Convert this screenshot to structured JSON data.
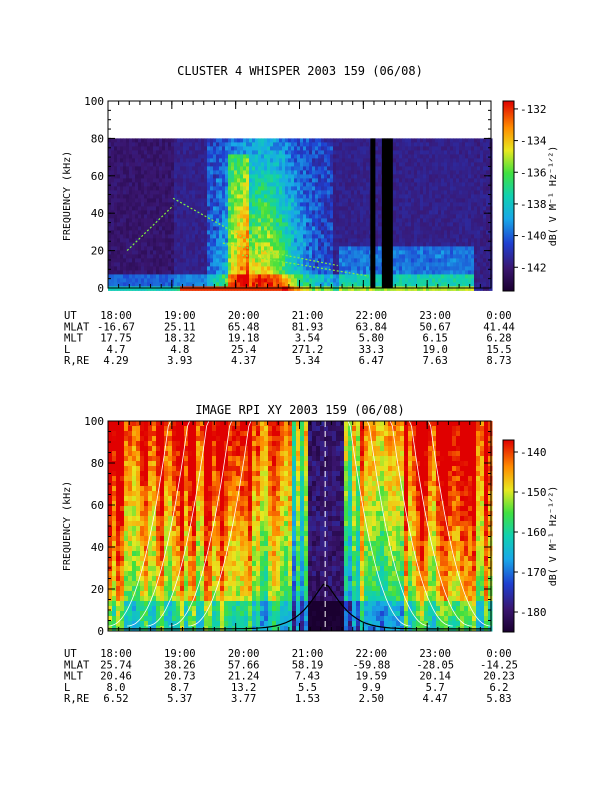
{
  "chart_data": [
    {
      "type": "heatmap",
      "title": "CLUSTER 4 WHISPER 2003 159 (06/08)",
      "ylabel": "FREQUENCY (kHz)",
      "colorbar_label": "dB( V M⁻¹ Hz⁻¹ᐟ²)",
      "ylim": [
        0,
        100
      ],
      "y_ticks": [
        "0",
        "20",
        "40",
        "60",
        "80",
        "100"
      ],
      "x_ticks": [
        "18:00",
        "19:00",
        "20:00",
        "21:00",
        "22:00",
        "23:00",
        "0:00"
      ],
      "colorbar_ticks": [
        "-132",
        "-134",
        "-136",
        "-138",
        "-140",
        "-142"
      ],
      "colorbar_range": [
        -143.5,
        -131.5
      ],
      "data_top_khz": 80,
      "ephemeris": [
        {
          "label": "UT",
          "values": [
            "18:00",
            "19:00",
            "20:00",
            "21:00",
            "22:00",
            "23:00",
            "0:00"
          ]
        },
        {
          "label": "MLAT",
          "values": [
            "-16.67",
            "25.11",
            "65.48",
            "81.93",
            "63.84",
            "50.67",
            "41.44"
          ]
        },
        {
          "label": "MLT",
          "values": [
            "17.75",
            "18.32",
            "19.18",
            "3.54",
            "5.80",
            "6.15",
            "6.28"
          ]
        },
        {
          "label": "L",
          "values": [
            "4.7",
            "4.8",
            "25.4",
            "271.2",
            "33.3",
            "19.0",
            "15.5"
          ]
        },
        {
          "label": "R,RE",
          "values": [
            "4.29",
            "3.93",
            "4.37",
            "5.34",
            "6.47",
            "7.63",
            "8.73"
          ]
        }
      ]
    },
    {
      "type": "heatmap",
      "title": "IMAGE RPI XY 2003 159 (06/08)",
      "ylabel": "FREQUENCY (kHz)",
      "colorbar_label": "dB( V M⁻¹ Hz⁻¹ᐟ²)",
      "ylim": [
        0,
        100
      ],
      "y_ticks": [
        "0",
        "20",
        "40",
        "60",
        "80",
        "100"
      ],
      "x_ticks": [
        "18:00",
        "19:00",
        "20:00",
        "21:00",
        "22:00",
        "23:00",
        "0:00"
      ],
      "colorbar_ticks": [
        "-140",
        "-150",
        "-160",
        "-170",
        "-180"
      ],
      "colorbar_range": [
        -185,
        -137
      ],
      "ephemeris": [
        {
          "label": "UT",
          "values": [
            "18:00",
            "19:00",
            "20:00",
            "21:00",
            "22:00",
            "23:00",
            "0:00"
          ]
        },
        {
          "label": "MLAT",
          "values": [
            "25.74",
            "38.26",
            "57.66",
            "58.19",
            "-59.88",
            "-28.05",
            "-14.25"
          ]
        },
        {
          "label": "MLT",
          "values": [
            "20.46",
            "20.73",
            "21.24",
            "7.43",
            "19.59",
            "20.14",
            "20.23"
          ]
        },
        {
          "label": "L",
          "values": [
            "8.0",
            "8.7",
            "13.2",
            "5.5",
            "9.9",
            "5.7",
            "6.2"
          ]
        },
        {
          "label": "R,RE",
          "values": [
            "6.52",
            "5.37",
            "3.77",
            "1.53",
            "2.50",
            "4.47",
            "5.83"
          ]
        }
      ]
    }
  ]
}
